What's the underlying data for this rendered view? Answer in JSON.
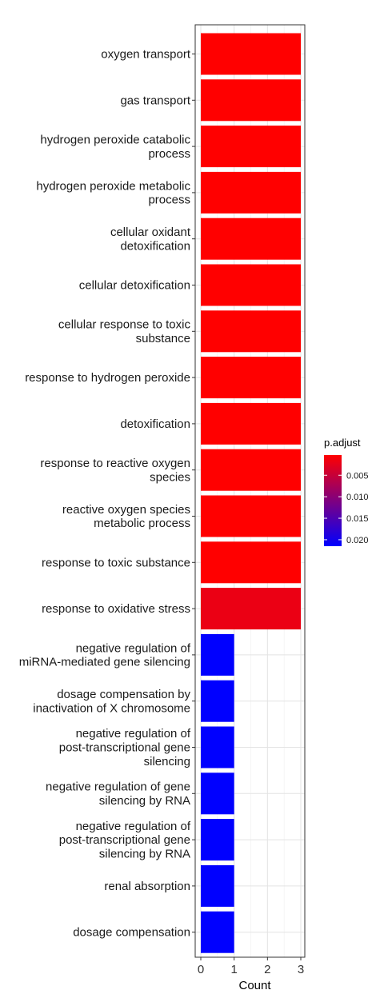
{
  "chart_data": {
    "type": "bar",
    "orientation": "horizontal",
    "xlabel": "Count",
    "ylabel": "",
    "xlim": [
      0,
      3
    ],
    "x_ticks": [
      "0",
      "1",
      "2",
      "3"
    ],
    "grid": true,
    "legend_position": "right",
    "categories": [
      "oxygen transport",
      "gas transport",
      "hydrogen peroxide catabolic\nprocess",
      "hydrogen peroxide metabolic\nprocess",
      "cellular oxidant\ndetoxification",
      "cellular detoxification",
      "cellular response to toxic\nsubstance",
      "response to hydrogen peroxide",
      "detoxification",
      "response to reactive oxygen\nspecies",
      "reactive oxygen species\nmetabolic process",
      "response to toxic substance",
      "response to oxidative stress",
      "negative regulation of\nmiRNA-mediated gene silencing",
      "dosage compensation by\ninactivation of X chromosome",
      "negative regulation of\npost-transcriptional gene\nsilencing",
      "negative regulation of gene\nsilencing by RNA",
      "negative regulation of\npost-transcriptional gene\nsilencing by RNA",
      "renal absorption",
      "dosage compensation"
    ],
    "values": [
      3,
      3,
      3,
      3,
      3,
      3,
      3,
      3,
      3,
      3,
      3,
      3,
      3,
      1,
      1,
      1,
      1,
      1,
      1,
      1
    ],
    "p_adjust": [
      0.0003,
      0.0003,
      0.0003,
      0.0003,
      0.0003,
      0.0003,
      0.0003,
      0.0003,
      0.0003,
      0.0003,
      0.0003,
      0.0003,
      0.002,
      0.0215,
      0.0215,
      0.0215,
      0.0215,
      0.0215,
      0.0215,
      0.0215
    ],
    "color_legend": {
      "title": "p.adjust",
      "ticks": [
        "0.005",
        "0.010",
        "0.015",
        "0.020"
      ],
      "tick_values": [
        0.005,
        0.01,
        0.015,
        0.02
      ],
      "range": [
        0.0003,
        0.0215
      ],
      "low_color": "#ff0000",
      "high_color": "#0000ff"
    }
  }
}
